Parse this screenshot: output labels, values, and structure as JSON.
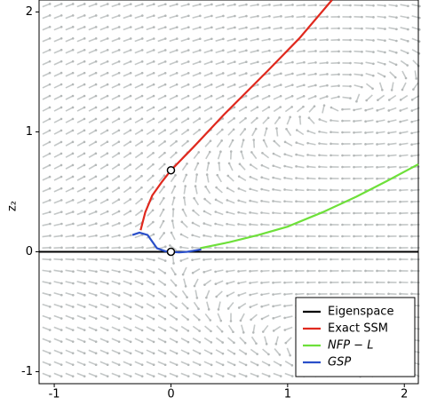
{
  "chart_data": {
    "type": "line",
    "y_label": "z₂",
    "xlim": [
      -1.13,
      2.12
    ],
    "ylim": [
      -1.1,
      2.1
    ],
    "xticks": [
      -1,
      0,
      1,
      2
    ],
    "yticks": [
      -1,
      0,
      1,
      2
    ],
    "grid": false,
    "legend": "lower right",
    "series": [
      {
        "name": "Eigenspace",
        "color": "#000000",
        "x": [
          -1.13,
          2.12
        ],
        "values": [
          0,
          0
        ]
      },
      {
        "name": "Exact SSM",
        "color": "#e0291e",
        "x": [
          -0.26,
          -0.22,
          -0.16,
          -0.08,
          0,
          0.2,
          0.45,
          0.83,
          1.1,
          1.38
        ],
        "values": [
          0.18,
          0.33,
          0.47,
          0.58,
          0.68,
          0.88,
          1.14,
          1.51,
          1.78,
          2.1
        ]
      },
      {
        "name": "NFP − L",
        "color": "#6ee03a",
        "label_style": "italic",
        "x": [
          0.25,
          0.5,
          0.75,
          1,
          1.3,
          1.59,
          1.85,
          2.12
        ],
        "values": [
          0.03,
          0.08,
          0.14,
          0.21,
          0.33,
          0.46,
          0.59,
          0.73
        ]
      },
      {
        "name": "GSP",
        "color": "#2a4fc9",
        "label_style": "italic",
        "x": [
          -0.33,
          -0.27,
          -0.2,
          -0.12,
          -0.05,
          0,
          0.07,
          0.14,
          0.2,
          0.26
        ],
        "values": [
          0.14,
          0.16,
          0.14,
          0.03,
          0.005,
          0,
          -0.005,
          0,
          0.01,
          0.02
        ]
      }
    ],
    "markers": {
      "x": [
        0,
        0
      ],
      "values": [
        0.68,
        0
      ]
    }
  }
}
